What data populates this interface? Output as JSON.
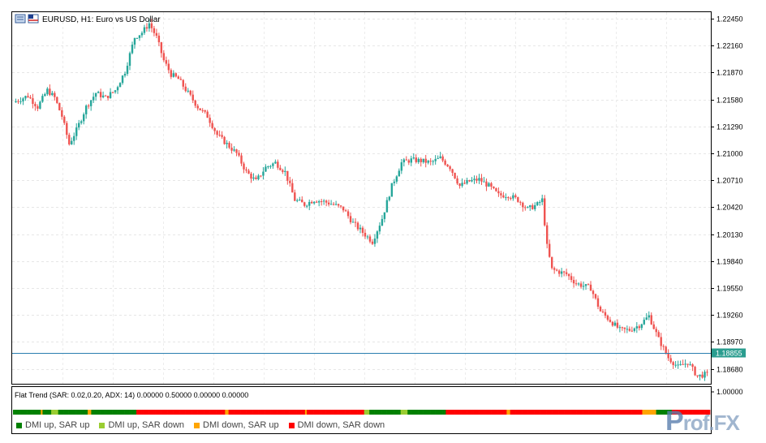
{
  "window": {
    "title": "EURUSD, H1:  Euro vs US Dollar"
  },
  "icons": {
    "chart_icon": "chart-window-icon",
    "flag_icon": "symbol-flag-icon"
  },
  "price_axis": {
    "ticks": [
      "1.22450",
      "1.22160",
      "1.21870",
      "1.21580",
      "1.21290",
      "1.21000",
      "1.20710",
      "1.20420",
      "1.20130",
      "1.19840",
      "1.19550",
      "1.19260",
      "1.18970",
      "1.18680"
    ],
    "current_price": "1.18855",
    "current_price_value": 1.18855,
    "range": [
      1.1852,
      1.2252
    ]
  },
  "indicator": {
    "title": "Flat Trend (SAR: 0.02,0.20, ADX: 14) 0.00000 0.50000 0.00000 0.00000",
    "axis_tick": "1.00000",
    "legend": [
      {
        "label": "DMI up, SAR up",
        "color": "#008000"
      },
      {
        "label": "DMI up, SAR down",
        "color": "#9acd32"
      },
      {
        "label": "DMI down, SAR up",
        "color": "#ffa500"
      },
      {
        "label": "DMI down, SAR down",
        "color": "#ff0000"
      }
    ],
    "states": [
      0,
      0,
      0,
      0,
      0,
      0,
      0,
      0,
      0,
      0,
      0,
      0,
      0,
      0,
      0,
      0,
      2,
      0,
      0,
      0,
      0,
      0,
      1,
      1,
      1,
      1,
      0,
      0,
      0,
      0,
      0,
      0,
      0,
      0,
      0,
      0,
      0,
      0,
      0,
      0,
      0,
      0,
      0,
      2,
      2,
      0,
      0,
      0,
      0,
      0,
      0,
      0,
      0,
      0,
      0,
      0,
      0,
      0,
      0,
      0,
      0,
      0,
      0,
      0,
      0,
      0,
      0,
      0,
      0,
      0,
      0,
      3,
      3,
      3,
      3,
      3,
      3,
      3,
      3,
      3,
      3,
      3,
      3,
      3,
      3,
      3,
      3,
      3,
      3,
      3,
      3,
      3,
      3,
      3,
      3,
      3,
      3,
      3,
      3,
      3,
      3,
      3,
      3,
      3,
      3,
      3,
      3,
      3,
      3,
      3,
      3,
      3,
      3,
      3,
      3,
      3,
      3,
      3,
      3,
      3,
      3,
      3,
      2,
      2,
      3,
      3,
      3,
      3,
      3,
      3,
      3,
      3,
      3,
      3,
      3,
      3,
      3,
      3,
      3,
      3,
      3,
      3,
      3,
      3,
      3,
      3,
      3,
      3,
      3,
      3,
      3,
      3,
      3,
      3,
      3,
      3,
      3,
      3,
      3,
      3,
      3,
      3,
      3,
      3,
      3,
      3,
      3,
      3,
      2,
      3,
      3,
      3,
      3,
      3,
      3,
      3,
      3,
      3,
      3,
      3,
      3,
      3,
      3,
      3,
      3,
      3,
      3,
      3,
      3,
      3,
      3,
      3,
      3,
      3,
      3,
      3,
      3,
      3,
      3,
      3,
      3,
      3,
      1,
      1,
      1,
      0,
      0,
      0,
      0,
      0,
      0,
      0,
      0,
      0,
      0,
      0,
      0,
      0,
      0,
      0,
      0,
      0,
      0,
      1,
      1,
      1,
      1,
      0,
      0,
      0,
      0,
      0,
      0,
      0,
      0,
      0,
      0,
      0,
      0,
      0,
      0,
      0,
      0,
      0,
      0,
      0,
      0,
      0,
      0,
      3,
      3,
      3,
      3,
      3,
      3,
      3,
      3,
      3,
      3,
      3,
      3,
      3,
      3,
      3,
      3,
      3,
      3,
      3,
      3,
      3,
      3,
      3,
      3,
      3,
      3,
      3,
      3,
      3,
      3,
      3,
      3,
      3,
      3,
      3,
      2,
      2,
      3,
      3,
      3,
      3,
      3,
      3,
      3,
      3,
      3,
      3,
      3,
      3,
      3,
      3,
      3,
      3,
      3,
      3,
      3,
      3,
      3,
      3,
      3,
      3,
      3,
      3,
      3,
      3,
      3,
      3,
      3,
      3,
      3,
      3,
      3,
      3,
      3,
      3,
      3,
      3,
      3,
      3,
      3,
      3,
      3,
      3,
      3,
      3,
      3,
      3,
      3,
      3,
      3,
      3,
      3,
      3,
      3,
      3,
      3,
      3,
      3,
      3,
      3,
      3,
      3,
      3,
      3,
      3,
      3,
      3,
      3,
      3,
      3,
      3,
      3,
      3,
      2,
      2,
      2,
      2,
      2,
      2,
      2,
      2,
      0,
      0,
      0,
      0,
      0,
      0,
      0,
      0,
      0,
      3,
      3,
      3,
      3,
      3,
      3,
      3,
      3,
      3,
      3,
      3,
      3,
      3,
      3,
      3,
      3,
      3,
      3,
      3,
      3,
      3,
      3
    ]
  },
  "chart_data": {
    "type": "candlestick",
    "symbol": "EURUSD",
    "timeframe": "H1",
    "ylim": [
      1.1852,
      1.2252
    ],
    "up_color": "#26a69a",
    "down_color": "#ef5350",
    "waypoints": [
      [
        0,
        1.2155
      ],
      [
        6,
        1.2162
      ],
      [
        10,
        1.215
      ],
      [
        14,
        1.2168
      ],
      [
        17,
        1.216
      ],
      [
        20,
        1.214
      ],
      [
        23,
        1.211
      ],
      [
        26,
        1.2125
      ],
      [
        30,
        1.215
      ],
      [
        34,
        1.2165
      ],
      [
        38,
        1.216
      ],
      [
        42,
        1.2168
      ],
      [
        46,
        1.2188
      ],
      [
        50,
        1.2225
      ],
      [
        53,
        1.223
      ],
      [
        56,
        1.224
      ],
      [
        59,
        1.2225
      ],
      [
        62,
        1.22
      ],
      [
        65,
        1.2185
      ],
      [
        68,
        1.218
      ],
      [
        72,
        1.2165
      ],
      [
        76,
        1.215
      ],
      [
        80,
        1.214
      ],
      [
        84,
        1.212
      ],
      [
        88,
        1.211
      ],
      [
        92,
        1.21
      ],
      [
        96,
        1.208
      ],
      [
        100,
        1.207
      ],
      [
        104,
        1.2085
      ],
      [
        108,
        1.209
      ],
      [
        112,
        1.208
      ],
      [
        116,
        1.205
      ],
      [
        120,
        1.2045
      ],
      [
        124,
        1.205
      ],
      [
        128,
        1.2048
      ],
      [
        132,
        1.2045
      ],
      [
        136,
        1.204
      ],
      [
        140,
        1.2025
      ],
      [
        144,
        1.2015
      ],
      [
        148,
        1.2005
      ],
      [
        152,
        1.203
      ],
      [
        156,
        1.2065
      ],
      [
        160,
        1.209
      ],
      [
        164,
        1.2093
      ],
      [
        168,
        1.2092
      ],
      [
        172,
        1.209
      ],
      [
        176,
        1.2095
      ],
      [
        180,
        1.2085
      ],
      [
        184,
        1.2065
      ],
      [
        188,
        1.207
      ],
      [
        192,
        1.2072
      ],
      [
        196,
        1.2065
      ],
      [
        200,
        1.2055
      ],
      [
        204,
        1.2055
      ],
      [
        208,
        1.205
      ],
      [
        212,
        1.204
      ],
      [
        216,
        1.2045
      ],
      [
        218,
        1.205
      ],
      [
        220,
        1.2
      ],
      [
        222,
        1.1975
      ],
      [
        228,
        1.197
      ],
      [
        232,
        1.196
      ],
      [
        238,
        1.1955
      ],
      [
        242,
        1.193
      ],
      [
        246,
        1.192
      ],
      [
        250,
        1.191
      ],
      [
        254,
        1.191
      ],
      [
        258,
        1.1915
      ],
      [
        262,
        1.1925
      ],
      [
        266,
        1.19
      ],
      [
        270,
        1.188
      ],
      [
        274,
        1.187
      ],
      [
        278,
        1.1875
      ],
      [
        282,
        1.186
      ],
      [
        285,
        1.1862
      ]
    ]
  }
}
